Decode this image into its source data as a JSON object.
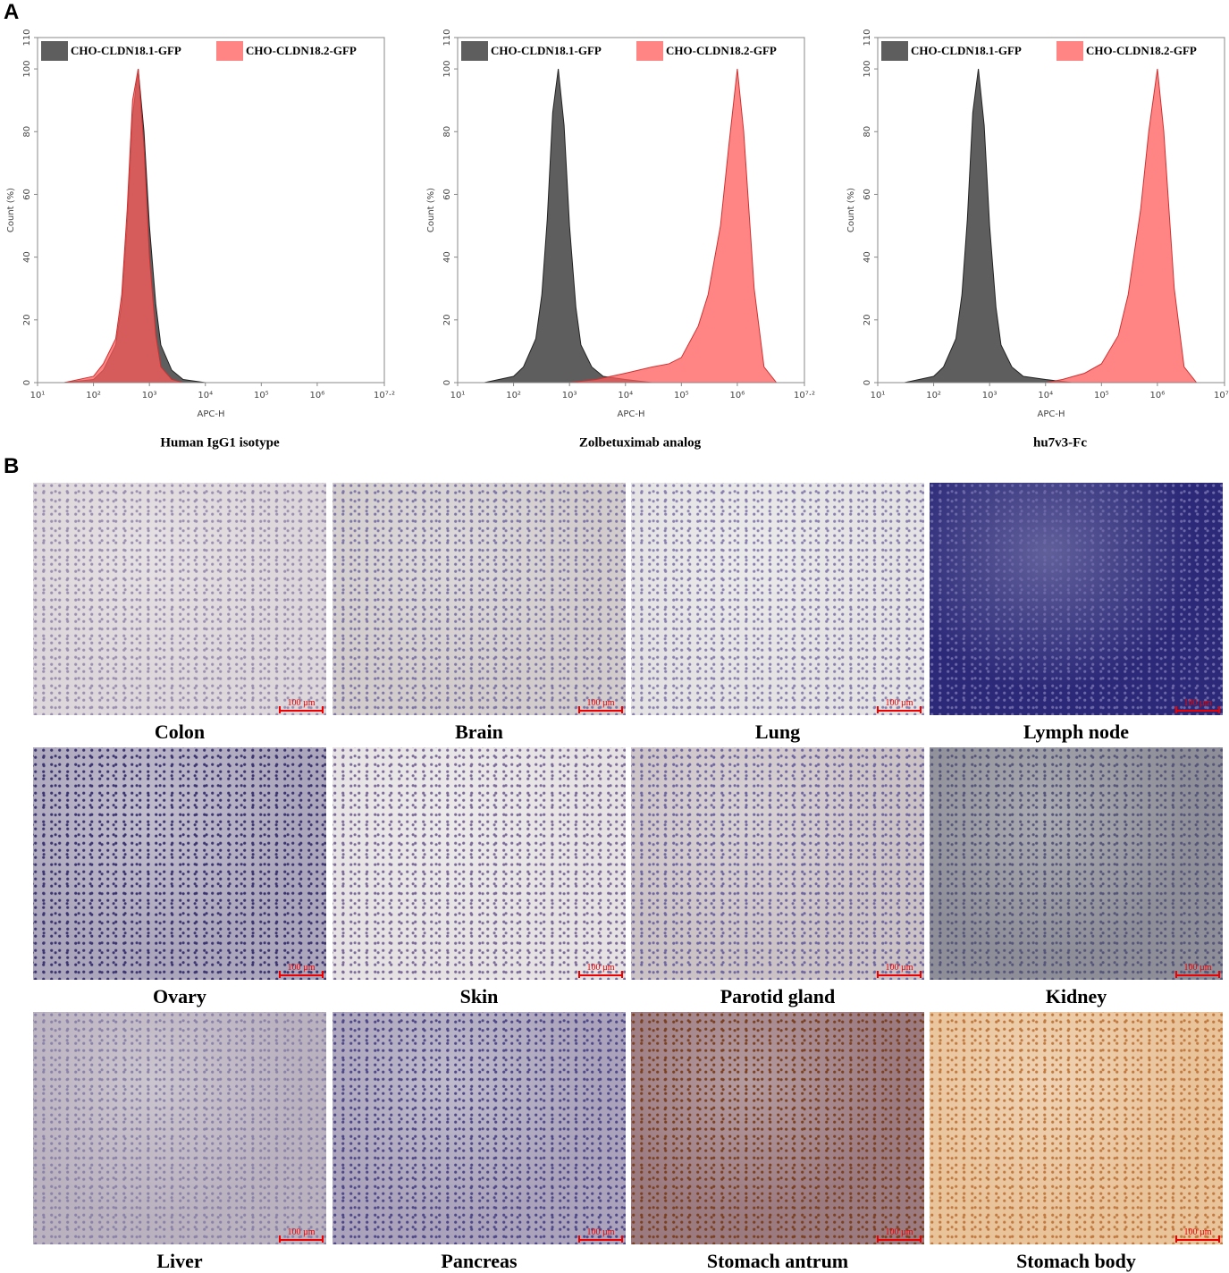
{
  "panels": {
    "a": "A",
    "b": "B"
  },
  "chart_data": [
    {
      "type": "area",
      "title": "Human IgG1 isotype",
      "xlabel": "APC-H",
      "ylabel": "Count (%)",
      "xscale": "log",
      "legend": "top",
      "xlim": [
        10,
        15848932
      ],
      "ylim": [
        0,
        110
      ],
      "xticks": [
        {
          "value": 10,
          "label": "10¹"
        },
        {
          "value": 100,
          "label": "10²"
        },
        {
          "value": 1000,
          "label": "10³"
        },
        {
          "value": 10000,
          "label": "10⁴"
        },
        {
          "value": 100000,
          "label": "10⁵"
        },
        {
          "value": 1000000,
          "label": "10⁶"
        },
        {
          "value": 15848932,
          "label": "10⁷·²"
        }
      ],
      "yticks": [
        0,
        20,
        40,
        60,
        80,
        100,
        110
      ],
      "series": [
        {
          "name": "CHO-CLDN18.1-GFP",
          "color": "#555555",
          "x": [
            30,
            100,
            150,
            250,
            320,
            400,
            500,
            630,
            800,
            1000,
            1300,
            1600,
            2500,
            4000,
            10000,
            30000
          ],
          "values": [
            0,
            1,
            4,
            12,
            25,
            50,
            85,
            100,
            80,
            50,
            25,
            12,
            4,
            1,
            0,
            0
          ]
        },
        {
          "name": "CHO-CLDN18.2-GFP",
          "color": "#ff5c5c",
          "x": [
            30,
            100,
            150,
            250,
            320,
            400,
            500,
            630,
            800,
            1000,
            1300,
            1600,
            2500,
            4000,
            10000,
            30000
          ],
          "values": [
            0,
            2,
            6,
            14,
            28,
            55,
            90,
            100,
            75,
            40,
            15,
            5,
            1,
            0,
            0,
            0
          ]
        }
      ]
    },
    {
      "type": "area",
      "title": "Zolbetuximab analog",
      "xlabel": "APC-H",
      "ylabel": "Count (%)",
      "xscale": "log",
      "legend": "top",
      "xlim": [
        10,
        15848932
      ],
      "ylim": [
        0,
        110
      ],
      "xticks": [
        {
          "value": 10,
          "label": "10¹"
        },
        {
          "value": 100,
          "label": "10²"
        },
        {
          "value": 1000,
          "label": "10³"
        },
        {
          "value": 10000,
          "label": "10⁴"
        },
        {
          "value": 100000,
          "label": "10⁵"
        },
        {
          "value": 1000000,
          "label": "10⁶"
        },
        {
          "value": 15848932,
          "label": "10⁷·²"
        }
      ],
      "yticks": [
        0,
        20,
        40,
        60,
        80,
        100,
        110
      ],
      "series": [
        {
          "name": "CHO-CLDN18.1-GFP",
          "color": "#555555",
          "x": [
            30,
            100,
            150,
            250,
            320,
            400,
            500,
            630,
            800,
            1000,
            1300,
            1600,
            2500,
            4000,
            10000,
            30000
          ],
          "values": [
            0,
            2,
            5,
            14,
            28,
            52,
            86,
            100,
            82,
            50,
            24,
            12,
            5,
            2,
            1,
            0
          ]
        },
        {
          "name": "CHO-CLDN18.2-GFP",
          "color": "#ff5c5c",
          "x": [
            1000,
            3000,
            10000,
            30000,
            60000,
            100000,
            200000,
            300000,
            500000,
            700000,
            1000000,
            1300000,
            2000000,
            3000000,
            5000000
          ],
          "values": [
            0,
            1,
            3,
            5,
            6,
            8,
            18,
            28,
            50,
            75,
            100,
            80,
            30,
            5,
            0
          ]
        }
      ]
    },
    {
      "type": "area",
      "title": "hu7v3-Fc",
      "xlabel": "APC-H",
      "ylabel": "Count (%)",
      "xscale": "log",
      "legend": "top",
      "xlim": [
        10,
        15848932
      ],
      "ylim": [
        0,
        110
      ],
      "xticks": [
        {
          "value": 10,
          "label": "10¹"
        },
        {
          "value": 100,
          "label": "10²"
        },
        {
          "value": 1000,
          "label": "10³"
        },
        {
          "value": 10000,
          "label": "10⁴"
        },
        {
          "value": 100000,
          "label": "10⁵"
        },
        {
          "value": 1000000,
          "label": "10⁶"
        },
        {
          "value": 15848932,
          "label": "10⁷·²"
        }
      ],
      "yticks": [
        0,
        20,
        40,
        60,
        80,
        100,
        110
      ],
      "series": [
        {
          "name": "CHO-CLDN18.1-GFP",
          "color": "#555555",
          "x": [
            30,
            100,
            150,
            250,
            320,
            400,
            500,
            630,
            800,
            1000,
            1300,
            1600,
            2500,
            4000,
            10000,
            30000
          ],
          "values": [
            0,
            2,
            5,
            14,
            28,
            52,
            86,
            100,
            82,
            50,
            24,
            12,
            5,
            2,
            1,
            0
          ]
        },
        {
          "name": "CHO-CLDN18.2-GFP",
          "color": "#ff5c5c",
          "x": [
            10000,
            20000,
            50000,
            100000,
            200000,
            300000,
            500000,
            700000,
            1000000,
            1300000,
            2000000,
            3000000,
            5000000
          ],
          "values": [
            0,
            1,
            3,
            6,
            15,
            28,
            55,
            80,
            100,
            80,
            30,
            5,
            0
          ]
        }
      ]
    }
  ],
  "tissues": {
    "scale_bar": "100 µm",
    "items": [
      "Colon",
      "Brain",
      "Lung",
      "Lymph node",
      "Ovary",
      "Skin",
      "Parotid gland",
      "Kidney",
      "Liver",
      "Pancreas",
      "Stomach antrum",
      "Stomach body"
    ]
  }
}
